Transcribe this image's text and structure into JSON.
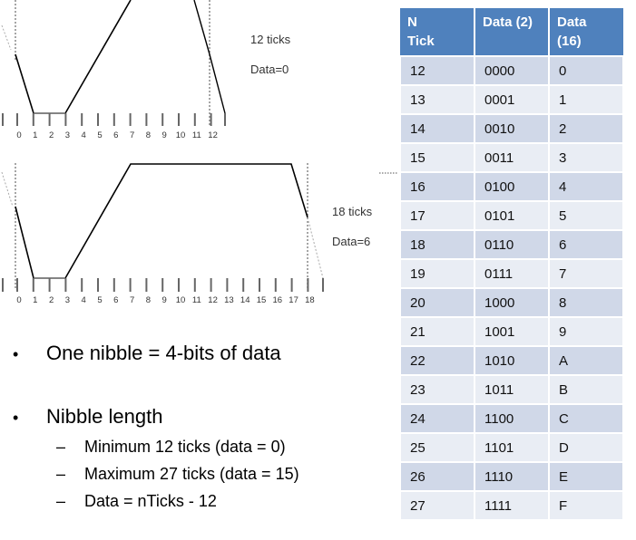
{
  "waveform_top": {
    "tick_labels": [
      "0",
      "1",
      "2",
      "3",
      "4",
      "5",
      "6",
      "7",
      "8",
      "9",
      "10",
      "11",
      "12"
    ],
    "ticks_note": "12 ticks",
    "data_note": "Data=0"
  },
  "waveform_bottom": {
    "tick_labels": [
      "0",
      "1",
      "2",
      "3",
      "4",
      "5",
      "6",
      "7",
      "8",
      "9",
      "10",
      "11",
      "12",
      "13",
      "14",
      "15",
      "16",
      "17",
      "18"
    ],
    "ticks_note": "18 ticks",
    "data_note": "Data=6"
  },
  "bullets": {
    "mark": "•",
    "dash": "–",
    "item1": "One nibble = 4-bits of data",
    "item2": "Nibble length",
    "sub1": "Minimum  12 ticks (data = 0)",
    "sub2": "Maximum  27 ticks (data = 15)",
    "sub3": "Data = nTicks - 12"
  },
  "table": {
    "header_line1": "N",
    "header_line2": "Tick",
    "header_data2": "Data (2)",
    "header_data16_line1": "Data",
    "header_data16_line2": "(16)",
    "rows": [
      [
        "12",
        "0000",
        "0"
      ],
      [
        "13",
        "0001",
        "1"
      ],
      [
        "14",
        "0010",
        "2"
      ],
      [
        "15",
        "0011",
        "3"
      ],
      [
        "16",
        "0100",
        "4"
      ],
      [
        "17",
        "0101",
        "5"
      ],
      [
        "18",
        "0110",
        "6"
      ],
      [
        "19",
        "0111",
        "7"
      ],
      [
        "20",
        "1000",
        "8"
      ],
      [
        "21",
        "1001",
        "9"
      ],
      [
        "22",
        "1010",
        "A"
      ],
      [
        "23",
        "1011",
        "B"
      ],
      [
        "24",
        "1100",
        "C"
      ],
      [
        "25",
        "1101",
        "D"
      ],
      [
        "26",
        "1110",
        "E"
      ],
      [
        "27",
        "1111",
        "F"
      ]
    ]
  },
  "colors": {
    "header_blue": "#4f81bd",
    "row_odd": "#d0d8e8",
    "row_even": "#e9edf4"
  }
}
